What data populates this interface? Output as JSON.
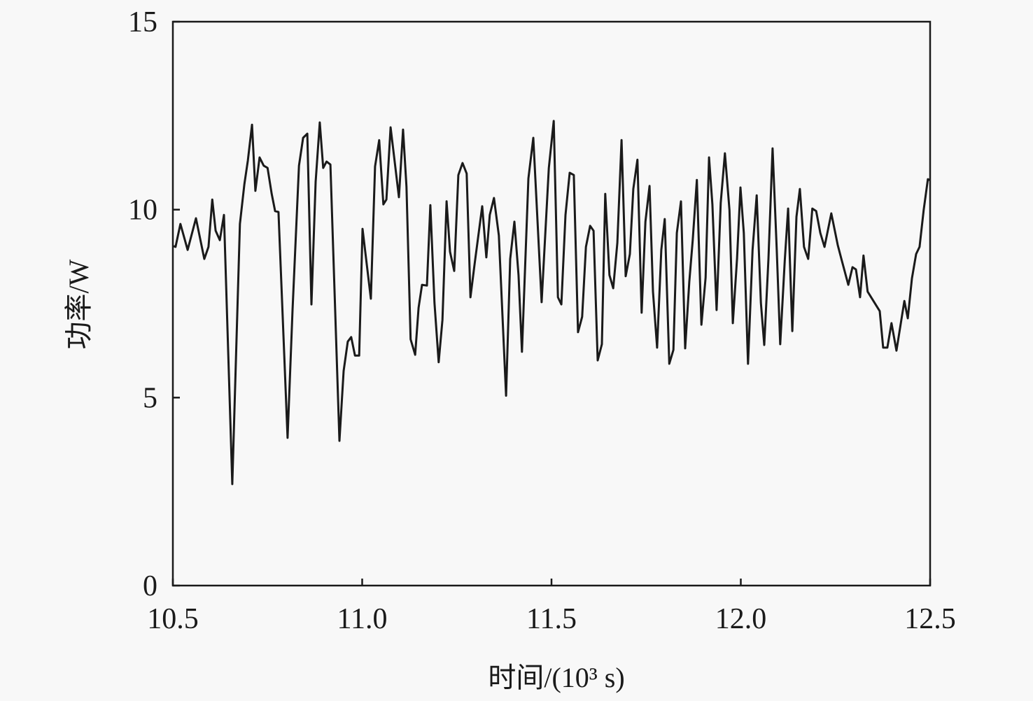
{
  "chart_data": {
    "type": "line",
    "title": "",
    "xlabel": "时间/(10³ s)",
    "ylabel": "功率/W",
    "xlim": [
      10.5,
      12.5
    ],
    "ylim": [
      0,
      15
    ],
    "xticks": [
      "10.5",
      "11.0",
      "11.5",
      "12.0",
      "12.5"
    ],
    "yticks": [
      "0",
      "5",
      "10",
      "15"
    ],
    "grid": false,
    "line_color": "#1a1a1a",
    "series": [
      {
        "x": [
          10.502,
          10.507,
          10.52,
          10.539,
          10.561,
          10.583,
          10.594,
          10.604,
          10.613,
          10.624,
          10.635,
          10.657,
          10.677,
          10.689,
          10.698,
          10.709,
          10.718,
          10.729,
          10.74,
          10.75,
          10.761,
          10.77,
          10.779,
          10.803,
          10.816,
          10.833,
          10.844,
          10.855,
          10.866,
          10.877,
          10.888,
          10.897,
          10.906,
          10.916,
          10.94,
          10.951,
          10.962,
          10.971,
          10.981,
          10.992,
          11.001,
          11.023,
          11.034,
          11.045,
          11.056,
          11.064,
          11.075,
          11.097,
          11.108,
          11.117,
          11.128,
          11.14,
          11.149,
          11.158,
          11.171,
          11.18,
          11.191,
          11.202,
          11.212,
          11.223,
          11.232,
          11.243,
          11.254,
          11.265,
          11.276,
          11.286,
          11.297,
          11.317,
          11.328,
          11.337,
          11.348,
          11.361,
          11.38,
          11.391,
          11.402,
          11.413,
          11.422,
          11.439,
          11.452,
          11.474,
          11.493,
          11.506,
          11.517,
          11.526,
          11.537,
          11.548,
          11.559,
          11.57,
          11.581,
          11.591,
          11.602,
          11.611,
          11.622,
          11.633,
          11.642,
          11.653,
          11.663,
          11.674,
          11.685,
          11.696,
          11.707,
          11.716,
          11.727,
          11.738,
          11.748,
          11.759,
          11.768,
          11.779,
          11.79,
          11.799,
          11.811,
          11.822,
          11.831,
          11.842,
          11.853,
          11.864,
          11.873,
          11.884,
          11.896,
          11.907,
          11.916,
          11.925,
          11.936,
          11.947,
          11.958,
          11.97,
          11.979,
          11.99,
          11.999,
          12.008,
          12.019,
          12.031,
          12.042,
          12.053,
          12.062,
          12.073,
          12.084,
          12.095,
          12.104,
          12.116,
          12.125,
          12.136,
          12.147,
          12.156,
          12.167,
          12.178,
          12.189,
          12.199,
          12.21,
          12.221,
          12.239,
          12.256,
          12.267,
          12.284,
          12.295,
          12.304,
          12.315,
          12.324,
          12.335,
          12.367,
          12.376,
          12.387,
          12.398,
          12.411,
          12.432,
          12.441,
          12.452,
          12.463,
          12.472,
          12.483,
          12.494,
          12.5
        ],
        "y": [
          9.03,
          9.01,
          9.62,
          8.93,
          9.77,
          8.69,
          9.01,
          10.27,
          9.44,
          9.19,
          9.86,
          2.7,
          9.62,
          10.68,
          11.3,
          12.26,
          10.5,
          11.39,
          11.17,
          11.11,
          10.42,
          9.96,
          9.94,
          3.93,
          7.33,
          11.17,
          11.91,
          12.02,
          7.48,
          10.74,
          12.32,
          11.11,
          11.28,
          11.2,
          3.85,
          5.71,
          6.49,
          6.61,
          6.12,
          6.12,
          9.49,
          7.63,
          11.15,
          11.85,
          10.14,
          10.27,
          12.19,
          10.33,
          12.13,
          10.61,
          6.55,
          6.14,
          7.39,
          8.0,
          7.98,
          10.12,
          7.52,
          5.94,
          7.07,
          10.22,
          8.88,
          8.37,
          10.92,
          11.24,
          10.96,
          7.67,
          8.56,
          10.09,
          8.73,
          9.86,
          10.31,
          9.31,
          5.05,
          8.69,
          9.68,
          8.26,
          6.22,
          10.83,
          11.91,
          7.54,
          11.11,
          12.36,
          7.67,
          7.48,
          9.86,
          10.98,
          10.92,
          6.74,
          7.15,
          9.01,
          9.57,
          9.44,
          5.99,
          6.42,
          10.42,
          8.26,
          7.91,
          9.12,
          11.85,
          8.23,
          8.82,
          10.55,
          11.33,
          7.26,
          9.68,
          10.63,
          7.82,
          6.33,
          8.93,
          9.75,
          5.9,
          6.27,
          9.38,
          10.22,
          6.31,
          8.08,
          9.19,
          10.79,
          6.94,
          8.19,
          11.39,
          10.14,
          7.33,
          10.18,
          11.5,
          9.99,
          6.98,
          8.69,
          10.59,
          9.38,
          5.9,
          8.93,
          10.38,
          7.52,
          6.4,
          8.69,
          11.63,
          8.91,
          6.42,
          8.64,
          10.03,
          6.77,
          9.81,
          10.55,
          9.01,
          8.69,
          10.03,
          9.96,
          9.38,
          9.01,
          9.9,
          9.06,
          8.64,
          8.0,
          8.47,
          8.41,
          7.67,
          8.78,
          7.82,
          7.3,
          6.33,
          6.33,
          6.98,
          6.25,
          7.57,
          7.11,
          8.17,
          8.82,
          9.01,
          9.99,
          10.81,
          10.78
        ]
      }
    ]
  }
}
